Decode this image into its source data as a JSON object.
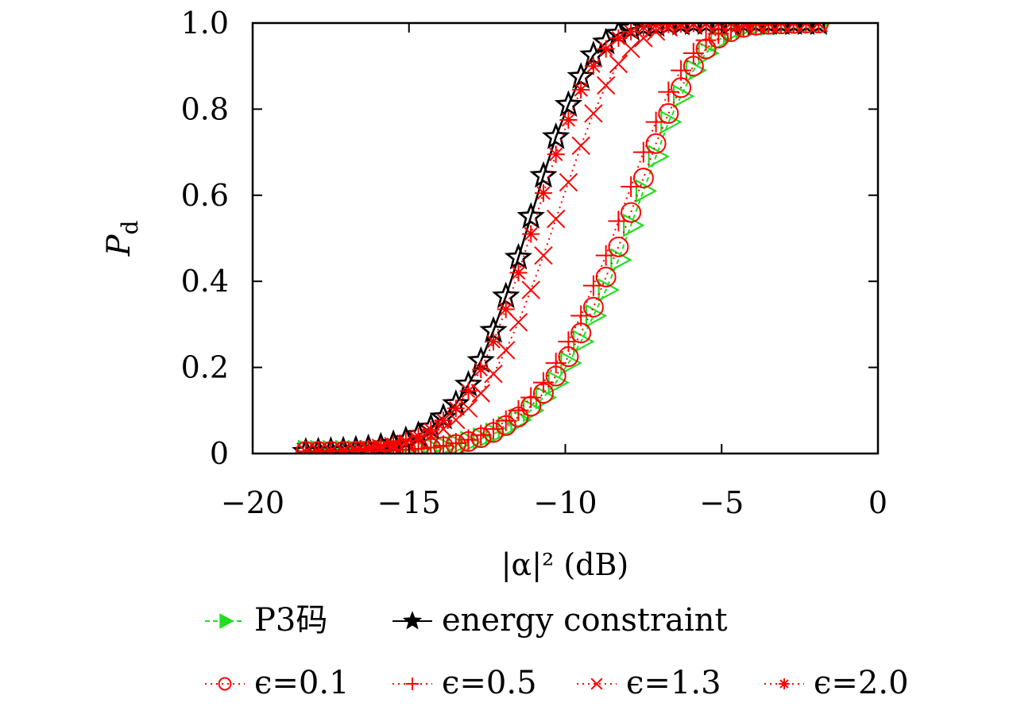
{
  "chart_data": {
    "type": "line",
    "xlabel": "|α|² (dB)",
    "ylabel": "P",
    "ylabel_sub": "d",
    "xlim": [
      -20,
      0
    ],
    "ylim": [
      0,
      1.0
    ],
    "xticks": [
      -20,
      -15,
      -10,
      -5,
      0
    ],
    "xtick_labels": [
      "−20",
      "−15",
      "−10",
      "−5",
      "0"
    ],
    "yticks": [
      0,
      0.2,
      0.4,
      0.6,
      0.8,
      1.0
    ],
    "ytick_labels": [
      "0",
      "0.2",
      "0.4",
      "0.6",
      "0.8",
      "1.0"
    ],
    "grid": false,
    "legend_placement": "bottom",
    "x": [
      -18.3,
      -17.9,
      -17.5,
      -17.1,
      -16.7,
      -16.3,
      -15.9,
      -15.5,
      -15.1,
      -14.7,
      -14.3,
      -13.9,
      -13.5,
      -13.1,
      -12.7,
      -12.3,
      -11.9,
      -11.5,
      -11.1,
      -10.7,
      -10.3,
      -9.9,
      -9.5,
      -9.1,
      -8.7,
      -8.3,
      -7.9,
      -7.5,
      -7.1,
      -6.7,
      -6.3,
      -5.9,
      -5.5,
      -5.1,
      -4.7,
      -4.3,
      -3.9,
      -3.5,
      -3.1,
      -2.7,
      -2.3,
      -1.9
    ],
    "series": [
      {
        "name": "P3码",
        "color": "#22dd22",
        "marker": "triangle-right",
        "dash": "6,4",
        "values": [
          0.005,
          0.005,
          0.005,
          0.005,
          0.005,
          0.005,
          0.006,
          0.007,
          0.008,
          0.01,
          0.012,
          0.015,
          0.02,
          0.026,
          0.034,
          0.045,
          0.06,
          0.078,
          0.1,
          0.13,
          0.165,
          0.21,
          0.26,
          0.32,
          0.38,
          0.45,
          0.53,
          0.61,
          0.69,
          0.77,
          0.83,
          0.89,
          0.93,
          0.96,
          0.98,
          0.99,
          0.995,
          0.997,
          0.998,
          0.999,
          1.0,
          1.0
        ]
      },
      {
        "name": "energy constraint",
        "color": "#000000",
        "marker": "star",
        "dash": "",
        "values": [
          0.004,
          0.005,
          0.006,
          0.007,
          0.009,
          0.012,
          0.016,
          0.022,
          0.031,
          0.043,
          0.06,
          0.084,
          0.115,
          0.16,
          0.215,
          0.285,
          0.365,
          0.455,
          0.55,
          0.645,
          0.735,
          0.81,
          0.875,
          0.925,
          0.955,
          0.975,
          0.987,
          0.993,
          0.996,
          0.998,
          0.999,
          1.0,
          1.0,
          1.0,
          1.0,
          1.0,
          1.0,
          1.0,
          1.0,
          1.0,
          1.0,
          1.0
        ]
      },
      {
        "name": "ϵ=0.1",
        "color": "#ff0000",
        "marker": "circle",
        "dash": "2,5",
        "values": [
          0.005,
          0.005,
          0.005,
          0.005,
          0.005,
          0.006,
          0.006,
          0.007,
          0.008,
          0.01,
          0.012,
          0.016,
          0.021,
          0.028,
          0.037,
          0.049,
          0.065,
          0.085,
          0.11,
          0.14,
          0.18,
          0.225,
          0.28,
          0.34,
          0.41,
          0.48,
          0.56,
          0.64,
          0.72,
          0.79,
          0.85,
          0.9,
          0.94,
          0.965,
          0.98,
          0.99,
          0.995,
          0.997,
          0.998,
          0.999,
          1.0,
          1.0
        ]
      },
      {
        "name": "ϵ=0.5",
        "color": "#ff0000",
        "marker": "plus",
        "dash": "2,5",
        "values": [
          0.005,
          0.005,
          0.005,
          0.005,
          0.006,
          0.006,
          0.007,
          0.008,
          0.009,
          0.011,
          0.014,
          0.018,
          0.024,
          0.032,
          0.043,
          0.057,
          0.076,
          0.1,
          0.13,
          0.165,
          0.21,
          0.26,
          0.32,
          0.39,
          0.46,
          0.54,
          0.62,
          0.7,
          0.77,
          0.84,
          0.89,
          0.93,
          0.96,
          0.975,
          0.985,
          0.992,
          0.996,
          0.998,
          0.999,
          1.0,
          1.0,
          1.0
        ]
      },
      {
        "name": "ϵ=1.3",
        "color": "#ff0000",
        "marker": "cross",
        "dash": "2,5",
        "values": [
          0.004,
          0.005,
          0.005,
          0.006,
          0.008,
          0.01,
          0.013,
          0.017,
          0.023,
          0.031,
          0.042,
          0.057,
          0.078,
          0.105,
          0.14,
          0.185,
          0.24,
          0.305,
          0.38,
          0.46,
          0.545,
          0.63,
          0.715,
          0.79,
          0.855,
          0.905,
          0.94,
          0.965,
          0.98,
          0.99,
          0.995,
          0.997,
          0.998,
          0.999,
          1.0,
          1.0,
          1.0,
          1.0,
          1.0,
          1.0,
          1.0,
          1.0
        ]
      },
      {
        "name": "ϵ=2.0",
        "color": "#ff0000",
        "marker": "asterisk",
        "dash": "2,5",
        "values": [
          0.004,
          0.005,
          0.006,
          0.007,
          0.009,
          0.012,
          0.016,
          0.021,
          0.029,
          0.04,
          0.055,
          0.077,
          0.105,
          0.145,
          0.195,
          0.26,
          0.335,
          0.42,
          0.51,
          0.605,
          0.695,
          0.775,
          0.845,
          0.9,
          0.94,
          0.965,
          0.98,
          0.99,
          0.995,
          0.997,
          0.998,
          0.999,
          1.0,
          1.0,
          1.0,
          1.0,
          1.0,
          1.0,
          1.0,
          1.0,
          1.0,
          1.0
        ]
      }
    ]
  }
}
